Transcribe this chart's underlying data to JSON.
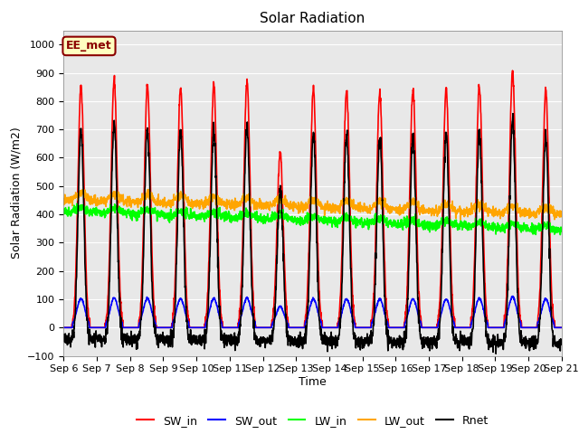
{
  "title": "Solar Radiation",
  "xlabel": "Time",
  "ylabel": "Solar Radiation (W/m2)",
  "ylim": [
    -100,
    1050
  ],
  "x_tick_labels": [
    "Sep 6",
    "Sep 7",
    "Sep 8",
    "Sep 9",
    "Sep 10",
    "Sep 11",
    "Sep 12",
    "Sep 13",
    "Sep 14",
    "Sep 15",
    "Sep 16",
    "Sep 17",
    "Sep 18",
    "Sep 19",
    "Sep 20",
    "Sep 21"
  ],
  "annotation_text": "EE_met",
  "annotation_color": "#8B0000",
  "annotation_bg": "#FFFFC0",
  "background_color": "#E8E8E8",
  "title_fontsize": 11,
  "axis_fontsize": 9,
  "tick_fontsize": 8,
  "legend_fontsize": 9,
  "series": {
    "SW_in": {
      "color": "red",
      "lw": 1.2
    },
    "SW_out": {
      "color": "blue",
      "lw": 1.2
    },
    "LW_in": {
      "color": "#00FF00",
      "lw": 1.2
    },
    "LW_out": {
      "color": "orange",
      "lw": 1.2
    },
    "Rnet": {
      "color": "black",
      "lw": 1.2
    }
  }
}
